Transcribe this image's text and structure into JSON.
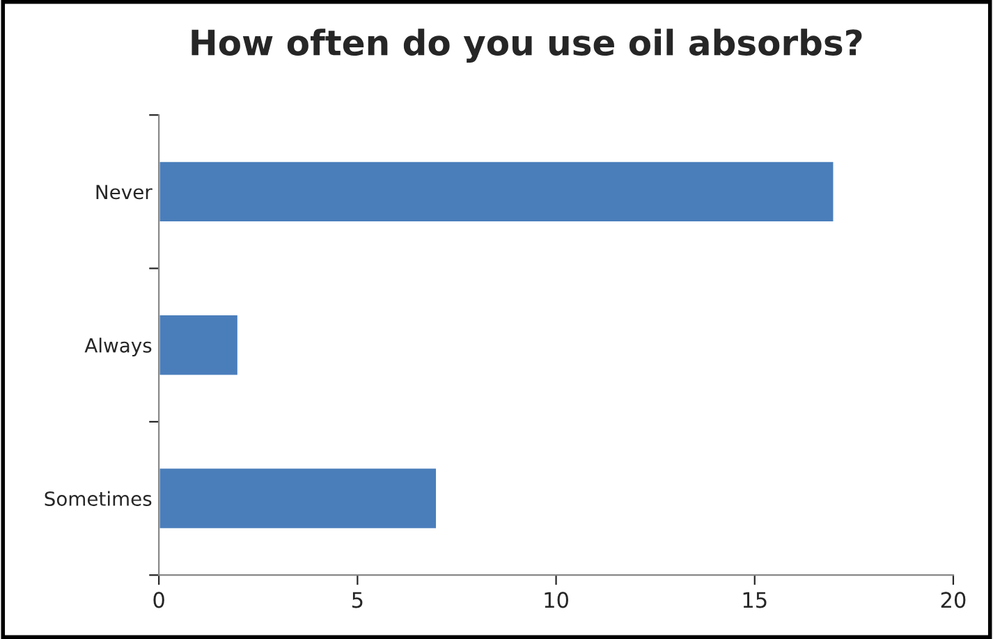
{
  "chart_data": {
    "type": "bar",
    "orientation": "horizontal",
    "title": "How often do you use oil absorbs?",
    "categories": [
      "Never",
      "Always",
      "Sometimes"
    ],
    "values": [
      17,
      2,
      7
    ],
    "color": "#4a7ebb",
    "xlim": [
      0,
      20
    ],
    "xticks": [
      0,
      5,
      10,
      15,
      20
    ],
    "grid": false,
    "legend": false
  }
}
